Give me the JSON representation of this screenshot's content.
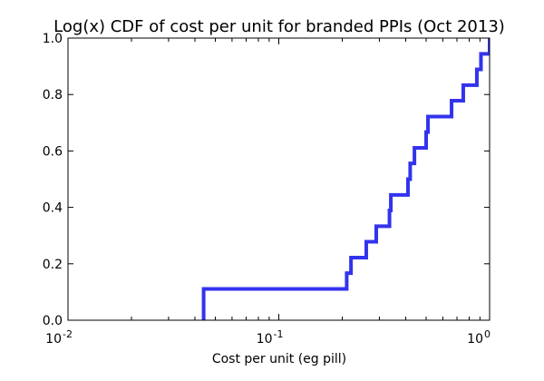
{
  "chart_data": {
    "type": "line",
    "title": "Log(x) CDF of cost per unit for branded PPIs (Oct 2013)",
    "xlabel": "Cost per unit (eg pill)",
    "ylabel": "",
    "x_scale": "log",
    "xlim": [
      0.01,
      1.0
    ],
    "ylim": [
      0.0,
      1.0
    ],
    "x_tick_labels": [
      {
        "value": 0.01,
        "base": "10",
        "exponent": "-2"
      },
      {
        "value": 0.1,
        "base": "10",
        "exponent": "-1"
      },
      {
        "value": 1.0,
        "base": "10",
        "exponent": "0"
      }
    ],
    "y_ticks": [
      0.0,
      0.2,
      0.4,
      0.6,
      0.8,
      1.0
    ],
    "y_tick_labels": [
      "0.0",
      "0.2",
      "0.4",
      "0.6",
      "0.8",
      "1.0"
    ],
    "grid": false,
    "series": [
      {
        "line_color": "#3333ee",
        "step": "post",
        "points": [
          {
            "x": 0.044,
            "y": 0.0
          },
          {
            "x": 0.044,
            "y": 0.111
          },
          {
            "x": 0.21,
            "y": 0.167
          },
          {
            "x": 0.22,
            "y": 0.222
          },
          {
            "x": 0.26,
            "y": 0.278
          },
          {
            "x": 0.29,
            "y": 0.333
          },
          {
            "x": 0.335,
            "y": 0.389
          },
          {
            "x": 0.34,
            "y": 0.444
          },
          {
            "x": 0.41,
            "y": 0.5
          },
          {
            "x": 0.42,
            "y": 0.556
          },
          {
            "x": 0.44,
            "y": 0.611
          },
          {
            "x": 0.5,
            "y": 0.667
          },
          {
            "x": 0.51,
            "y": 0.722
          },
          {
            "x": 0.66,
            "y": 0.778
          },
          {
            "x": 0.75,
            "y": 0.833
          },
          {
            "x": 0.87,
            "y": 0.889
          },
          {
            "x": 0.91,
            "y": 0.944
          },
          {
            "x": 1.0,
            "y": 1.0
          }
        ]
      }
    ]
  }
}
